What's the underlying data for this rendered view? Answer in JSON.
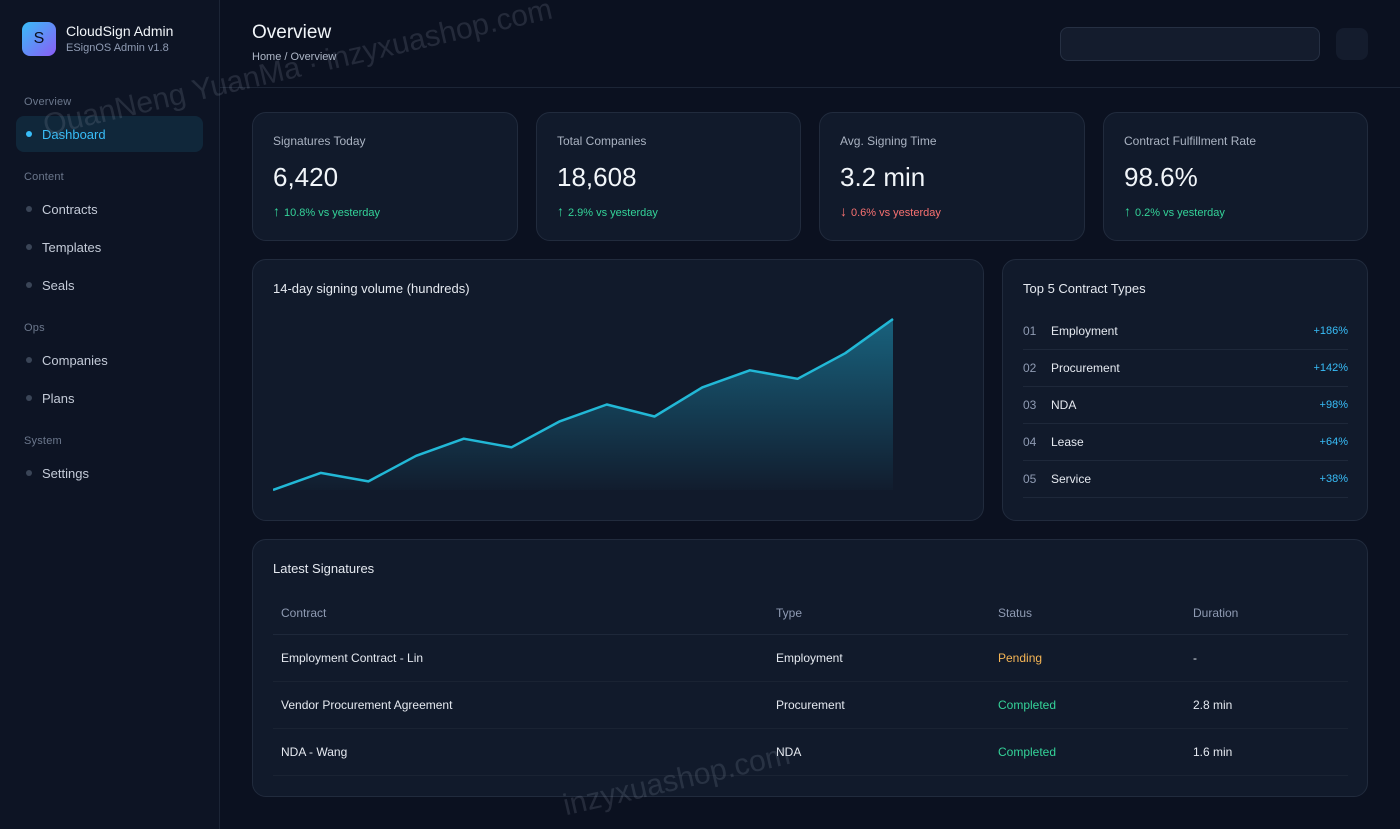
{
  "brand": {
    "logo_letter": "S",
    "name": "CloudSign Admin",
    "version": "ESignOS Admin v1.8"
  },
  "nav": {
    "sections": [
      {
        "label": "Overview",
        "items": [
          {
            "label": "Dashboard",
            "active": true
          }
        ]
      },
      {
        "label": "Content",
        "items": [
          {
            "label": "Contracts"
          },
          {
            "label": "Templates"
          },
          {
            "label": "Seals"
          }
        ]
      },
      {
        "label": "Ops",
        "items": [
          {
            "label": "Companies"
          },
          {
            "label": "Plans"
          }
        ]
      },
      {
        "label": "System",
        "items": [
          {
            "label": "Settings"
          }
        ]
      }
    ]
  },
  "header": {
    "title": "Overview",
    "breadcrumb": "Home / Overview",
    "search_value": ""
  },
  "stats": [
    {
      "label": "Signatures Today",
      "value": "6,420",
      "arrow": "↑",
      "delta": "10.8% vs yesterday",
      "trend": "up"
    },
    {
      "label": "Total Companies",
      "value": "18,608",
      "arrow": "↑",
      "delta": "2.9% vs yesterday",
      "trend": "up"
    },
    {
      "label": "Avg. Signing Time",
      "value": "3.2 min",
      "arrow": "↓",
      "delta": "0.6% vs yesterday",
      "trend": "down"
    },
    {
      "label": "Contract Fulfillment Rate",
      "value": "98.6%",
      "arrow": "↑",
      "delta": "0.2% vs yesterday",
      "trend": "up"
    }
  ],
  "volume_chart": {
    "title": "14-day signing volume (hundreds)",
    "line_color": "#22b8d6"
  },
  "chart_data": {
    "type": "area",
    "title": "14-day signing volume (hundreds)",
    "x": [
      1,
      2,
      3,
      4,
      5,
      6,
      7,
      8,
      9,
      10,
      11,
      12,
      13,
      14
    ],
    "series": [
      {
        "values": [
          0,
          10,
          5,
          20,
          30,
          25,
          40,
          50,
          43,
          60,
          70,
          65,
          80,
          100
        ]
      }
    ],
    "ylim": [
      0,
      100
    ],
    "grid": false,
    "legend": "none"
  },
  "top_types": {
    "title": "Top 5 Contract Types",
    "items": [
      {
        "rank": "01",
        "name": "Employment",
        "pct": "+186%"
      },
      {
        "rank": "02",
        "name": "Procurement",
        "pct": "+142%"
      },
      {
        "rank": "03",
        "name": "NDA",
        "pct": "+98%"
      },
      {
        "rank": "04",
        "name": "Lease",
        "pct": "+64%"
      },
      {
        "rank": "05",
        "name": "Service",
        "pct": "+38%"
      }
    ]
  },
  "latest": {
    "title": "Latest Signatures",
    "columns": [
      "Contract",
      "Type",
      "Status",
      "Duration"
    ],
    "rows": [
      {
        "contract": "Employment Contract - Lin",
        "type": "Employment",
        "status": "Pending",
        "duration": "-"
      },
      {
        "contract": "Vendor Procurement Agreement",
        "type": "Procurement",
        "status": "Completed",
        "duration": "2.8 min"
      },
      {
        "contract": "NDA - Wang",
        "type": "NDA",
        "status": "Completed",
        "duration": "1.6 min"
      }
    ]
  },
  "watermarks": [
    "QuanNeng YuanMa · inzyxuashop.com",
    "inzyxuashop.com"
  ]
}
